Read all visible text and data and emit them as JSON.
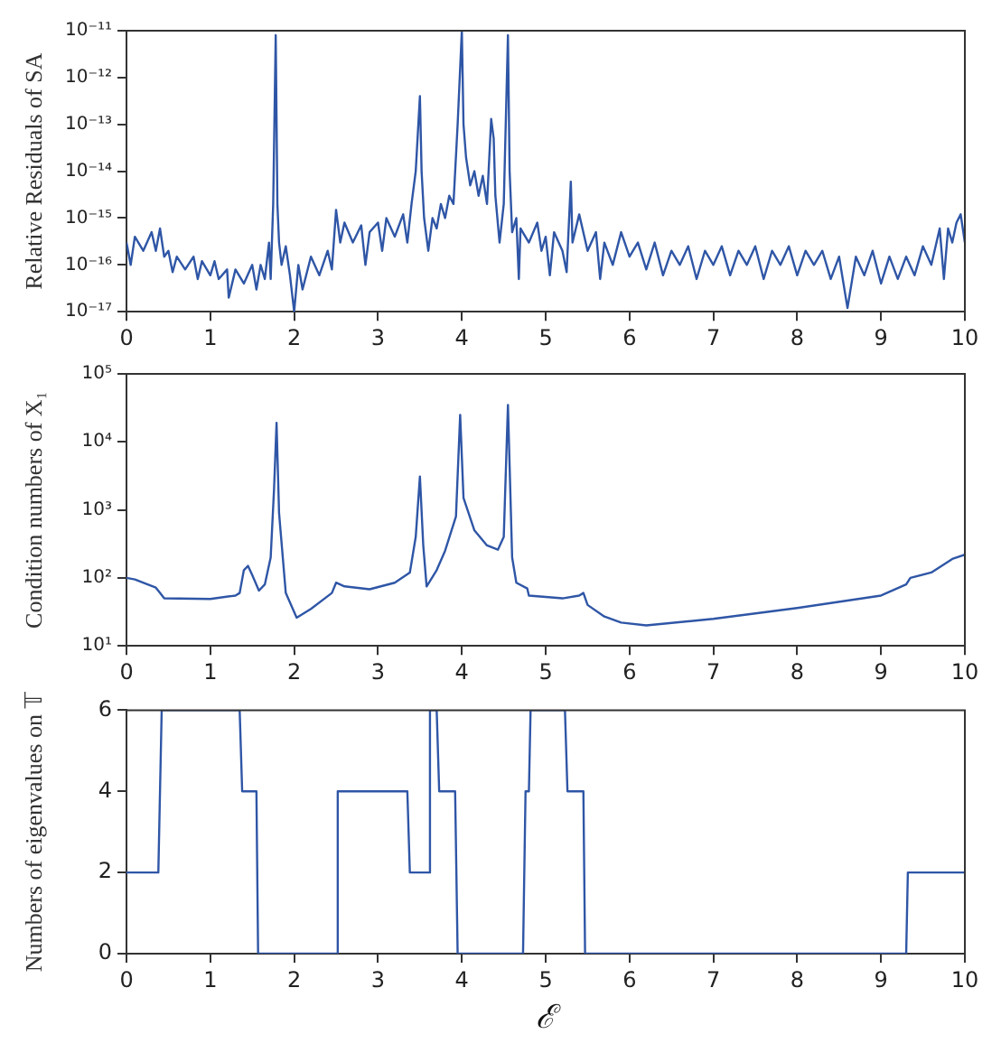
{
  "chart_data": [
    {
      "type": "line",
      "ylabel": "Relative Residuals of SA",
      "log": "y",
      "grid": false,
      "legend": false,
      "line_style": "solid",
      "xlim": [
        0,
        10
      ],
      "xticks": [
        0,
        1,
        2,
        3,
        4,
        5,
        6,
        7,
        8,
        9,
        10
      ],
      "ylim": [
        1e-17,
        1e-11
      ],
      "yticks": [
        {
          "value": 1e-17,
          "label": "10⁻¹⁷"
        },
        {
          "value": 1e-16,
          "label": "10⁻¹⁶"
        },
        {
          "value": 1e-15,
          "label": "10⁻¹⁵"
        },
        {
          "value": 1e-14,
          "label": "10⁻¹⁴"
        },
        {
          "value": 1e-13,
          "label": "10⁻¹³"
        },
        {
          "value": 1e-12,
          "label": "10⁻¹²"
        },
        {
          "value": 1e-11,
          "label": "10⁻¹¹"
        }
      ],
      "x": [
        0,
        0.05,
        0.1,
        0.2,
        0.3,
        0.35,
        0.4,
        0.45,
        0.5,
        0.55,
        0.6,
        0.7,
        0.8,
        0.85,
        0.9,
        1.0,
        1.05,
        1.1,
        1.2,
        1.22,
        1.3,
        1.4,
        1.5,
        1.55,
        1.6,
        1.65,
        1.7,
        1.72,
        1.75,
        1.78,
        1.8,
        1.82,
        1.85,
        1.9,
        1.95,
        2.0,
        2.05,
        2.1,
        2.2,
        2.3,
        2.4,
        2.45,
        2.5,
        2.55,
        2.6,
        2.7,
        2.8,
        2.85,
        2.9,
        3.0,
        3.05,
        3.1,
        3.2,
        3.3,
        3.35,
        3.4,
        3.45,
        3.5,
        3.52,
        3.55,
        3.6,
        3.65,
        3.7,
        3.75,
        3.8,
        3.85,
        3.9,
        3.95,
        4.0,
        4.02,
        4.05,
        4.1,
        4.15,
        4.2,
        4.25,
        4.3,
        4.35,
        4.38,
        4.4,
        4.45,
        4.5,
        4.55,
        4.57,
        4.6,
        4.65,
        4.68,
        4.7,
        4.8,
        4.9,
        4.95,
        5.0,
        5.05,
        5.1,
        5.2,
        5.25,
        5.3,
        5.32,
        5.4,
        5.5,
        5.6,
        5.65,
        5.7,
        5.8,
        5.9,
        6.0,
        6.1,
        6.2,
        6.3,
        6.4,
        6.5,
        6.6,
        6.7,
        6.8,
        6.9,
        7.0,
        7.1,
        7.2,
        7.3,
        7.4,
        7.5,
        7.6,
        7.7,
        7.8,
        7.9,
        8.0,
        8.1,
        8.2,
        8.3,
        8.4,
        8.5,
        8.6,
        8.7,
        8.8,
        8.9,
        9.0,
        9.1,
        9.2,
        9.3,
        9.4,
        9.5,
        9.6,
        9.7,
        9.75,
        9.8,
        9.85,
        9.9,
        9.95,
        10
      ],
      "series": [
        {
          "color": "#2f56a6",
          "values": [
            3e-16,
            1e-16,
            4e-16,
            2e-16,
            5e-16,
            2e-16,
            6e-16,
            1.5e-16,
            2e-16,
            7e-17,
            1.5e-16,
            8e-17,
            1.5e-16,
            5e-17,
            1.2e-16,
            6e-17,
            1.2e-16,
            5e-17,
            8e-17,
            2e-17,
            8e-17,
            4e-17,
            1e-16,
            3e-17,
            1e-16,
            5e-17,
            3e-16,
            5e-17,
            2e-15,
            8e-12,
            2e-15,
            3e-16,
            1e-16,
            2.5e-16,
            6e-17,
            1e-17,
            1e-16,
            3e-17,
            1.5e-16,
            6e-17,
            2e-16,
            8e-17,
            1.5e-15,
            3e-16,
            8e-16,
            3e-16,
            7e-16,
            1e-16,
            5e-16,
            8e-16,
            2e-16,
            1e-15,
            4e-16,
            1.2e-15,
            3e-16,
            2e-15,
            1e-14,
            4e-13,
            1e-14,
            1e-15,
            2e-16,
            1e-15,
            6e-16,
            2e-15,
            1e-15,
            3e-15,
            2e-15,
            1e-13,
            1e-11,
            1e-13,
            2e-14,
            5e-15,
            1e-14,
            3e-15,
            8e-15,
            2e-15,
            1.3e-13,
            5e-14,
            3e-15,
            3e-16,
            2e-15,
            8e-12,
            1e-14,
            5e-16,
            1e-15,
            5e-17,
            6e-16,
            3e-16,
            8e-16,
            2e-16,
            4e-16,
            6e-17,
            5e-16,
            2e-16,
            7e-17,
            6e-15,
            3e-16,
            1.2e-15,
            2e-16,
            5e-16,
            5e-17,
            3e-16,
            1e-16,
            5e-16,
            1.5e-16,
            3e-16,
            8e-17,
            3e-16,
            6e-17,
            2e-16,
            1e-16,
            2.5e-16,
            5e-17,
            2e-16,
            1e-16,
            2.5e-16,
            6e-17,
            2e-16,
            1e-16,
            2.5e-16,
            5e-17,
            2e-16,
            1e-16,
            2.5e-16,
            6e-17,
            2e-16,
            1e-16,
            2e-16,
            5e-17,
            1.5e-16,
            1.2e-17,
            1.5e-16,
            6e-17,
            2e-16,
            4e-17,
            1.5e-16,
            5e-17,
            1.5e-16,
            6e-17,
            2.5e-16,
            1e-16,
            6e-16,
            5e-17,
            6e-16,
            3e-16,
            8e-16,
            1.2e-15,
            3e-16
          ]
        }
      ]
    },
    {
      "type": "line",
      "ylabel": "Condition numbers of X₁",
      "log": "y",
      "grid": false,
      "legend": false,
      "line_style": "solid",
      "xlim": [
        0,
        10
      ],
      "xticks": [
        0,
        1,
        2,
        3,
        4,
        5,
        6,
        7,
        8,
        9,
        10
      ],
      "ylim": [
        10,
        100000
      ],
      "yticks": [
        {
          "value": 10,
          "label": "10¹"
        },
        {
          "value": 100,
          "label": "10²"
        },
        {
          "value": 1000,
          "label": "10³"
        },
        {
          "value": 10000,
          "label": "10⁴"
        },
        {
          "value": 100000,
          "label": "10⁵"
        }
      ],
      "x": [
        0,
        0.1,
        0.35,
        0.4,
        0.45,
        1.0,
        1.3,
        1.35,
        1.4,
        1.45,
        1.5,
        1.58,
        1.65,
        1.72,
        1.76,
        1.79,
        1.82,
        1.9,
        2.03,
        2.2,
        2.45,
        2.5,
        2.6,
        2.9,
        3.2,
        3.38,
        3.45,
        3.5,
        3.54,
        3.58,
        3.7,
        3.8,
        3.93,
        3.98,
        4.02,
        4.15,
        4.3,
        4.43,
        4.5,
        4.55,
        4.6,
        4.65,
        4.78,
        4.8,
        5.2,
        5.4,
        5.45,
        5.5,
        5.7,
        5.9,
        6.2,
        7,
        8,
        9,
        9.3,
        9.35,
        9.6,
        9.85,
        10
      ],
      "series": [
        {
          "color": "#2f56a6",
          "values": [
            100,
            95,
            72,
            60,
            50,
            49,
            55,
            60,
            130,
            150,
            110,
            65,
            80,
            200,
            2000,
            19000,
            900,
            60,
            26,
            35,
            60,
            85,
            75,
            68,
            85,
            120,
            400,
            3100,
            300,
            75,
            130,
            250,
            800,
            25000,
            1500,
            500,
            300,
            260,
            400,
            35000,
            200,
            85,
            70,
            55,
            50,
            55,
            60,
            40,
            27,
            22,
            20,
            25,
            36,
            55,
            80,
            100,
            120,
            190,
            220
          ]
        }
      ]
    },
    {
      "type": "line",
      "ylabel": "Numbers of eigenvalues on 𝕋",
      "xlabel": "ℰ",
      "grid": false,
      "legend": false,
      "line_style": "solid",
      "xlim": [
        0,
        10
      ],
      "xticks": [
        0,
        1,
        2,
        3,
        4,
        5,
        6,
        7,
        8,
        9,
        10
      ],
      "ylim": [
        0,
        6
      ],
      "yticks": [
        0,
        2,
        4,
        6
      ],
      "x": [
        0,
        0.38,
        0.42,
        1.35,
        1.38,
        1.55,
        1.57,
        2.5,
        2.52,
        3.35,
        3.38,
        3.6,
        3.62,
        3.7,
        3.73,
        3.92,
        3.95,
        4.73,
        4.76,
        4.8,
        4.82,
        5.23,
        5.26,
        5.45,
        5.47,
        9.3,
        9.32,
        10
      ],
      "series": [
        {
          "color": "#2f56a6",
          "values": [
            2,
            2,
            6,
            6,
            4,
            4,
            0,
            0,
            4,
            4,
            2,
            2,
            6,
            6,
            4,
            4,
            0,
            0,
            4,
            4,
            6,
            6,
            4,
            4,
            0,
            0,
            2,
            2
          ]
        }
      ]
    }
  ]
}
